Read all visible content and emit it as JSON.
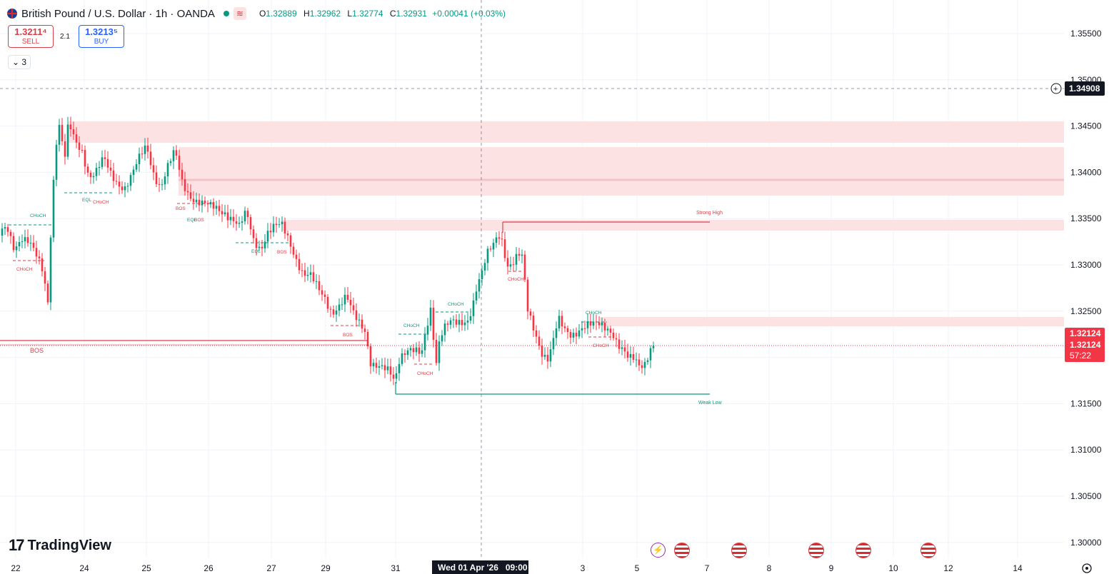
{
  "header": {
    "symbol": "British Pound / U.S. Dollar · 1h · OANDA",
    "open_label": "O",
    "open": "1.32889",
    "high_label": "H",
    "high": "1.32962",
    "low_label": "L",
    "low": "1.32774",
    "close_label": "C",
    "close": "1.32931",
    "change": "+0.00041 (+0.03%)"
  },
  "trade": {
    "sell_price": "1.3211⁴",
    "sell_label": "SELL",
    "spread": "2.1",
    "buy_price": "1.3213⁵",
    "buy_label": "BUY",
    "indicators_count": "3"
  },
  "logo": {
    "text": "TradingView"
  },
  "price_axis": {
    "ticks": [
      "1.35500",
      "1.35000",
      "1.34500",
      "1.34000",
      "1.33500",
      "1.33000",
      "1.32500",
      "1.32000",
      "1.31500",
      "1.31000",
      "1.30500",
      "1.30000"
    ],
    "crosshair_price": "1.34908",
    "last_price": "1.32124",
    "last_price_2": "1.32124",
    "countdown": "57:22"
  },
  "time_axis": {
    "ticks": [
      "22",
      "24",
      "25",
      "26",
      "27",
      "29",
      "31",
      "3",
      "5",
      "7",
      "8",
      "9",
      "10",
      "12",
      "14"
    ],
    "crosshair_time": "Wed 01 Apr '26   09:00"
  },
  "annotations": {
    "strong_high": "Strong High",
    "weak_low": "Weak Low",
    "labels": [
      {
        "text": "CHoCH",
        "color": "#089981"
      },
      {
        "text": "CHoCH",
        "color": "#d9414a"
      },
      {
        "text": "EQL",
        "color": "#089981"
      },
      {
        "text": "CHoCH",
        "color": "#d9414a"
      },
      {
        "text": "BOS",
        "color": "#d9414a"
      },
      {
        "text": "EQL",
        "color": "#089981"
      },
      {
        "text": "BOS",
        "color": "#d9414a"
      },
      {
        "text": "EQL",
        "color": "#089981"
      },
      {
        "text": "BOS",
        "color": "#d9414a"
      },
      {
        "text": "BOS",
        "color": "#d9414a"
      },
      {
        "text": "BOS",
        "color": "#d9414a"
      },
      {
        "text": "CHoCH",
        "color": "#089981"
      },
      {
        "text": "CHoCH",
        "color": "#089981"
      },
      {
        "text": "CHoCH",
        "color": "#d9414a"
      },
      {
        "text": "CHoCH",
        "color": "#d9414a"
      },
      {
        "text": "CHoCH",
        "color": "#089981"
      },
      {
        "text": "CHoCH",
        "color": "#d9414a"
      }
    ]
  },
  "colors": {
    "up": "#089981",
    "down": "#f23645",
    "zone": "#fde2e4",
    "grid": "#f0f3fa"
  },
  "event_icons": [
    "flash-icon",
    "us-flag-icon",
    "us-flag-icon",
    "us-flag-icon",
    "us-flag-icon",
    "us-flag-icon"
  ]
}
